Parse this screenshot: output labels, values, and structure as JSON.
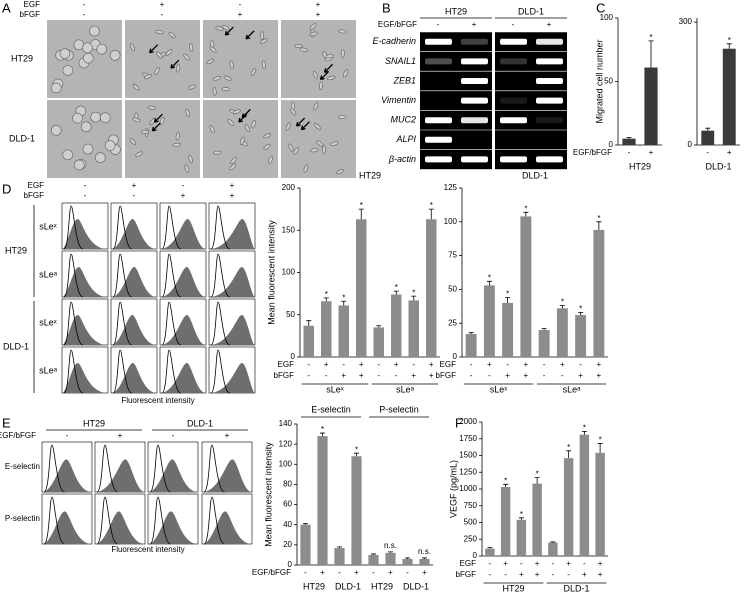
{
  "panels": {
    "A": {
      "letter": "A",
      "treatments": [
        {
          "name": "EGF",
          "signs": [
            "-",
            "+",
            "-",
            "+"
          ]
        },
        {
          "name": "bFGF",
          "signs": [
            "-",
            "-",
            "+",
            "+"
          ]
        }
      ],
      "cell_lines": [
        "HT29",
        "DLD-1"
      ]
    },
    "B": {
      "letter": "B",
      "treatment": "EGF/bFGF",
      "cell_lines": [
        "HT29",
        "DLD-1"
      ],
      "signs": [
        "-",
        "+"
      ],
      "genes": [
        "E-cadherin",
        "SNAIL1",
        "ZEB1",
        "Vimentin",
        "MUC2",
        "ALPI",
        "β-actin"
      ]
    },
    "C": {
      "letter": "C"
    },
    "D": {
      "letter": "D",
      "treatments": [
        {
          "name": "EGF",
          "signs": [
            "-",
            "+",
            "-",
            "+"
          ]
        },
        {
          "name": "bFGF",
          "signs": [
            "-",
            "-",
            "+",
            "+"
          ]
        }
      ],
      "markers": [
        "sLeˣ",
        "sLeᵃ"
      ],
      "cell_lines": [
        "HT29",
        "DLD-1"
      ],
      "xlabel": "Fluorescent intensity"
    },
    "E": {
      "letter": "E",
      "treatment": "EGF/bFGF",
      "cell_lines": [
        "HT29",
        "DLD-1"
      ],
      "signs": [
        "-",
        "+"
      ],
      "markers": [
        "E-selectin",
        "P-selectin"
      ],
      "xlabel": "Fluorescent intensity"
    },
    "F": {
      "letter": "F"
    }
  },
  "chart_data": [
    {
      "type": "bar",
      "ylabel": "Migrated cell number",
      "ylim": [
        0,
        100
      ],
      "yticks": [
        0,
        50,
        100
      ],
      "color": "#3a3a3a",
      "sign_rows": [
        {
          "name": "EGF/bFGF",
          "signs": [
            "-",
            "+"
          ]
        }
      ],
      "groups": [
        {
          "label": "HT29",
          "values": [
            5,
            61
          ],
          "errors": [
            1,
            21
          ],
          "markers": [
            null,
            "*"
          ]
        }
      ]
    },
    {
      "type": "bar",
      "ylim": [
        0,
        310
      ],
      "yticks": [
        0,
        300
      ],
      "color": "#3a3a3a",
      "sign_rows": [
        {
          "signs": [
            "-",
            "+"
          ]
        }
      ],
      "groups": [
        {
          "label": "DLD-1",
          "values": [
            35,
            235
          ],
          "errors": [
            6,
            12
          ],
          "markers": [
            null,
            "*"
          ]
        }
      ]
    },
    {
      "type": "bar",
      "title": "HT29",
      "ylabel": "Mean fluorescent intensity",
      "ylim": [
        0,
        200
      ],
      "yticks": [
        0,
        50,
        100,
        150,
        200
      ],
      "color": "#8c8c8c",
      "sign_rows": [
        {
          "name": "EGF",
          "signs": [
            "-",
            "+",
            "-",
            "+",
            "-",
            "+",
            "-",
            "+"
          ]
        },
        {
          "name": "bFGF",
          "signs": [
            "-",
            "-",
            "+",
            "+",
            "-",
            "-",
            "+",
            "+"
          ]
        }
      ],
      "groups": [
        {
          "label": "sLeˣ",
          "values": [
            37,
            66,
            61,
            163
          ],
          "errors": [
            6,
            4,
            5,
            12
          ],
          "markers": [
            null,
            "*",
            "*",
            "*"
          ]
        },
        {
          "label": "sLeᵃ",
          "values": [
            35,
            74,
            67,
            163
          ],
          "errors": [
            2,
            4,
            5,
            12
          ],
          "markers": [
            null,
            "*",
            "*",
            "*"
          ]
        }
      ]
    },
    {
      "type": "bar",
      "title": "DLD-1",
      "ylim": [
        0,
        125
      ],
      "yticks": [
        0,
        25,
        50,
        75,
        100,
        125
      ],
      "color": "#8c8c8c",
      "sign_rows": [
        {
          "name": "EGF",
          "signs": [
            "-",
            "+",
            "-",
            "+",
            "-",
            "+",
            "-",
            "+"
          ]
        },
        {
          "name": "bFGF",
          "signs": [
            "-",
            "-",
            "+",
            "+",
            "-",
            "-",
            "+",
            "+"
          ]
        }
      ],
      "groups": [
        {
          "label": "sLeˣ",
          "values": [
            17,
            53,
            40,
            104
          ],
          "errors": [
            1,
            3,
            4,
            3
          ],
          "markers": [
            null,
            "*",
            "*",
            "*"
          ]
        },
        {
          "label": "sLeᵃ",
          "values": [
            20,
            36,
            31,
            94
          ],
          "errors": [
            1,
            2,
            2,
            6
          ],
          "markers": [
            null,
            "*",
            "*",
            "*"
          ]
        }
      ]
    },
    {
      "type": "bar",
      "ylabel": "Mean fluorescent intensity",
      "ylim": [
        0,
        140
      ],
      "yticks": [
        0,
        20,
        40,
        60,
        80,
        100,
        120,
        140
      ],
      "color": "#8c8c8c",
      "headers": [
        "E-selectin",
        "P-selectin"
      ],
      "sign_rows": [
        {
          "name": "EGF/bFGF",
          "signs": [
            "-",
            "+",
            "-",
            "+",
            "-",
            "+",
            "-",
            "+"
          ]
        }
      ],
      "groups": [
        {
          "label": "HT29",
          "values": [
            40,
            128
          ],
          "errors": [
            1,
            3
          ],
          "markers": [
            null,
            "*"
          ]
        },
        {
          "label": "DLD-1",
          "values": [
            17,
            108
          ],
          "errors": [
            1,
            3
          ],
          "markers": [
            null,
            "*"
          ]
        },
        {
          "label": "HT29",
          "values": [
            10,
            12
          ],
          "errors": [
            1,
            1
          ],
          "markers": [
            null,
            "n.s."
          ]
        },
        {
          "label": "DLD-1",
          "values": [
            6,
            6
          ],
          "errors": [
            1,
            1
          ],
          "markers": [
            null,
            "n.s."
          ]
        }
      ]
    },
    {
      "type": "bar",
      "ylabel": "VEGF (pg/mL)",
      "ylim": [
        0,
        2000
      ],
      "yticks": [
        0,
        250,
        500,
        750,
        1000,
        1250,
        1500,
        1750,
        2000
      ],
      "color": "#8c8c8c",
      "sign_rows": [
        {
          "name": "EGF",
          "signs": [
            "-",
            "+",
            "-",
            "+",
            "-",
            "+",
            "-",
            "+"
          ]
        },
        {
          "name": "bFGF",
          "signs": [
            "-",
            "-",
            "+",
            "+",
            "-",
            "-",
            "+",
            "+"
          ]
        }
      ],
      "groups": [
        {
          "label": "HT29",
          "values": [
            110,
            1030,
            540,
            1080
          ],
          "errors": [
            15,
            40,
            30,
            90
          ],
          "markers": [
            null,
            "*",
            "*",
            "*"
          ]
        },
        {
          "label": "DLD-1",
          "values": [
            200,
            1460,
            1810,
            1540
          ],
          "errors": [
            10,
            110,
            50,
            140
          ],
          "markers": [
            null,
            "*",
            "*",
            "*"
          ]
        }
      ]
    }
  ]
}
